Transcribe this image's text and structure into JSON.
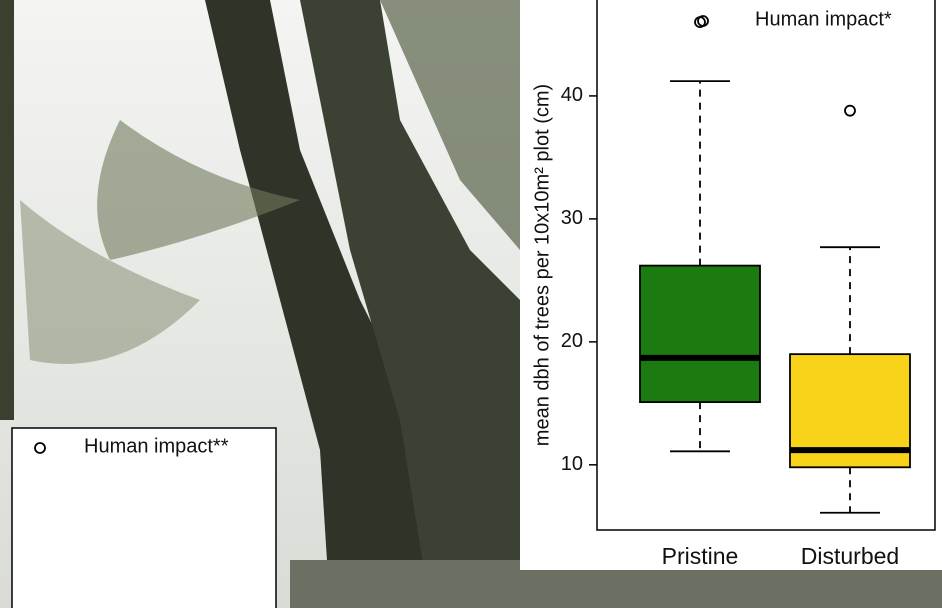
{
  "chart_data": {
    "type": "boxplot",
    "ylabel": "mean dbh of trees per 10x10m² plot (cm)",
    "legend": "Human impact*",
    "categories": [
      "Pristine",
      "Disturbed"
    ],
    "boxes": [
      {
        "color": "#1b7a10",
        "whisker_low": 11.1,
        "q1": 15.1,
        "median": 18.7,
        "q3": 26.2,
        "whisker_high": 41.2,
        "outliers": [
          46.0
        ]
      },
      {
        "color": "#f9d21a",
        "whisker_low": 6.1,
        "q1": 9.8,
        "median": 11.2,
        "q3": 19.0,
        "whisker_high": 27.7,
        "outliers": [
          38.8
        ]
      }
    ],
    "ylim": [
      4.7,
      47.8
    ],
    "yticks": [
      10,
      20,
      30,
      40
    ]
  },
  "partial_legend": "Human impact**"
}
